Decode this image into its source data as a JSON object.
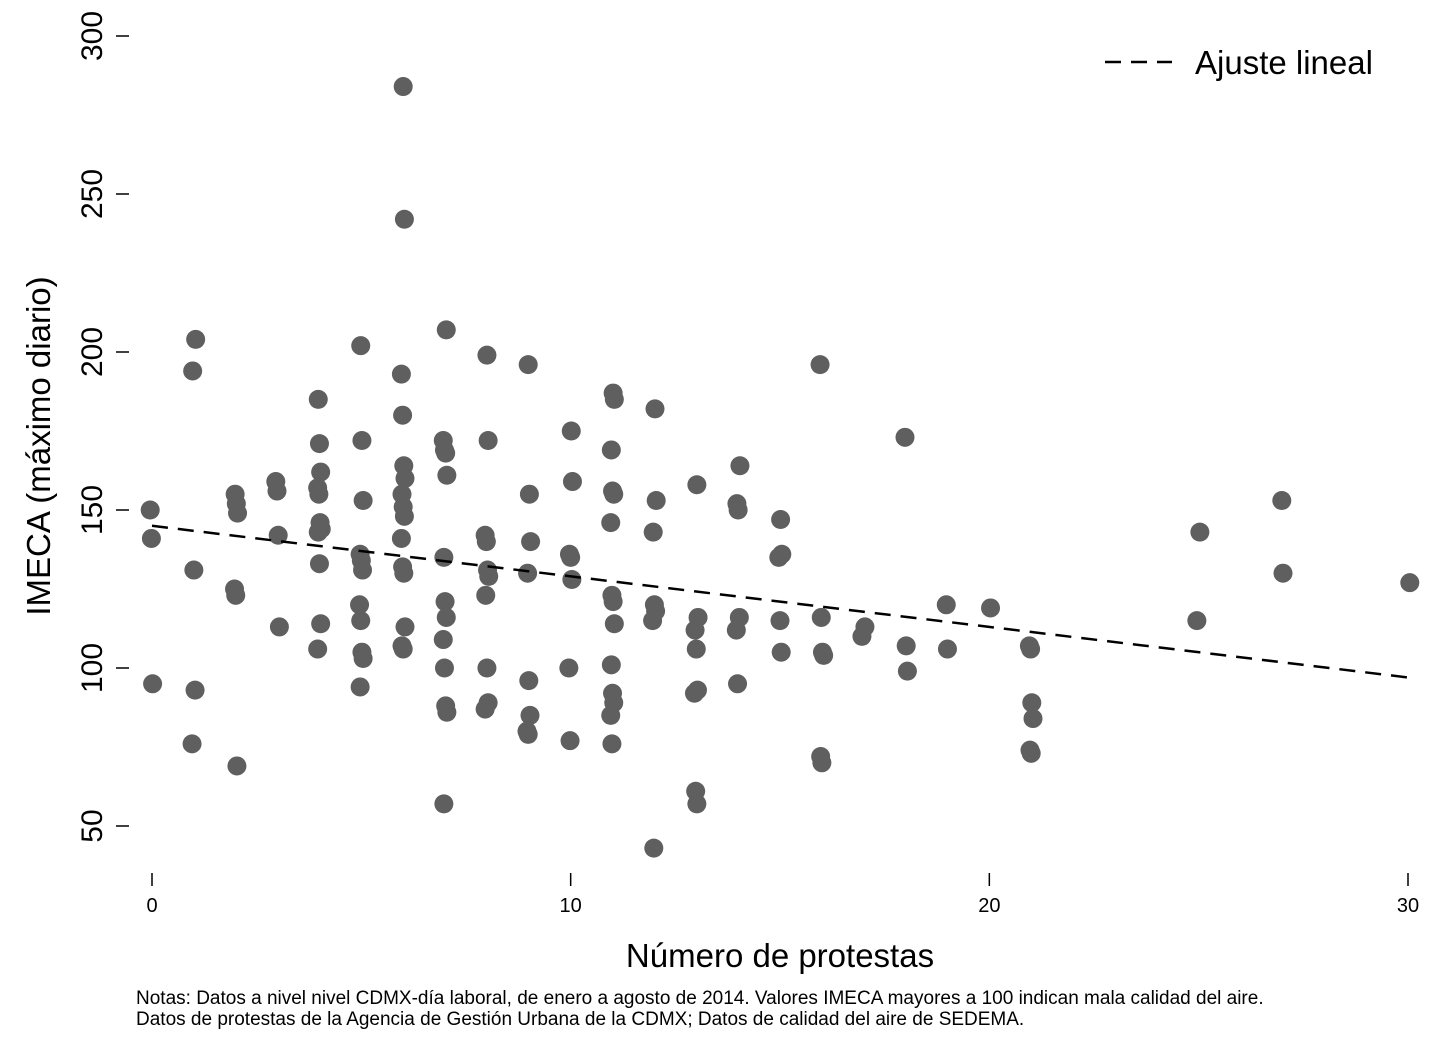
{
  "chart_data": {
    "type": "scatter",
    "xlabel": "Número de protestas",
    "ylabel": "IMECA (máximo diario)",
    "xlim": [
      0,
      30
    ],
    "ylim": [
      38,
      305
    ],
    "x_ticks": [
      0,
      10,
      20,
      30
    ],
    "y_ticks": [
      50,
      100,
      150,
      200,
      250,
      300
    ],
    "legend": {
      "position": "top-right",
      "entries": [
        {
          "label": "Ajuste lineal",
          "style": "dashed"
        }
      ]
    },
    "fit_line": {
      "x": [
        0,
        30
      ],
      "y": [
        145,
        97
      ]
    },
    "colors": {
      "points": "#5f5f5f",
      "fit": "#000000"
    },
    "points": [
      [
        0,
        150
      ],
      [
        0,
        141
      ],
      [
        0,
        95
      ],
      [
        1,
        204
      ],
      [
        1,
        194
      ],
      [
        1,
        131
      ],
      [
        1,
        93
      ],
      [
        1,
        76
      ],
      [
        2,
        155
      ],
      [
        2,
        152
      ],
      [
        2,
        149
      ],
      [
        2,
        125
      ],
      [
        2,
        123
      ],
      [
        2,
        69
      ],
      [
        3,
        159
      ],
      [
        3,
        156
      ],
      [
        3,
        142
      ],
      [
        3,
        113
      ],
      [
        4,
        185
      ],
      [
        4,
        171
      ],
      [
        4,
        162
      ],
      [
        4,
        157
      ],
      [
        4,
        155
      ],
      [
        4,
        146
      ],
      [
        4,
        144
      ],
      [
        4,
        143
      ],
      [
        4,
        133
      ],
      [
        4,
        114
      ],
      [
        4,
        106
      ],
      [
        5,
        202
      ],
      [
        5,
        172
      ],
      [
        5,
        153
      ],
      [
        5,
        136
      ],
      [
        5,
        134
      ],
      [
        5,
        131
      ],
      [
        5,
        120
      ],
      [
        5,
        115
      ],
      [
        5,
        105
      ],
      [
        5,
        103
      ],
      [
        5,
        94
      ],
      [
        6,
        284
      ],
      [
        6,
        242
      ],
      [
        6,
        193
      ],
      [
        6,
        180
      ],
      [
        6,
        164
      ],
      [
        6,
        160
      ],
      [
        6,
        155
      ],
      [
        6,
        151
      ],
      [
        6,
        148
      ],
      [
        6,
        141
      ],
      [
        6,
        132
      ],
      [
        6,
        130
      ],
      [
        6,
        113
      ],
      [
        6,
        107
      ],
      [
        6,
        106
      ],
      [
        7,
        207
      ],
      [
        7,
        172
      ],
      [
        7,
        169
      ],
      [
        7,
        168
      ],
      [
        7,
        161
      ],
      [
        7,
        135
      ],
      [
        7,
        121
      ],
      [
        7,
        116
      ],
      [
        7,
        109
      ],
      [
        7,
        100
      ],
      [
        7,
        88
      ],
      [
        7,
        86
      ],
      [
        7,
        57
      ],
      [
        8,
        199
      ],
      [
        8,
        172
      ],
      [
        8,
        142
      ],
      [
        8,
        140
      ],
      [
        8,
        131
      ],
      [
        8,
        129
      ],
      [
        8,
        123
      ],
      [
        8,
        100
      ],
      [
        8,
        89
      ],
      [
        8,
        87
      ],
      [
        9,
        196
      ],
      [
        9,
        155
      ],
      [
        9,
        140
      ],
      [
        9,
        130
      ],
      [
        9,
        96
      ],
      [
        9,
        85
      ],
      [
        9,
        80
      ],
      [
        9,
        79
      ],
      [
        10,
        175
      ],
      [
        10,
        159
      ],
      [
        10,
        136
      ],
      [
        10,
        135
      ],
      [
        10,
        128
      ],
      [
        10,
        100
      ],
      [
        10,
        77
      ],
      [
        11,
        187
      ],
      [
        11,
        185
      ],
      [
        11,
        169
      ],
      [
        11,
        156
      ],
      [
        11,
        155
      ],
      [
        11,
        146
      ],
      [
        11,
        123
      ],
      [
        11,
        121
      ],
      [
        11,
        114
      ],
      [
        11,
        101
      ],
      [
        11,
        92
      ],
      [
        11,
        89
      ],
      [
        11,
        85
      ],
      [
        11,
        76
      ],
      [
        12,
        182
      ],
      [
        12,
        153
      ],
      [
        12,
        143
      ],
      [
        12,
        120
      ],
      [
        12,
        118
      ],
      [
        12,
        115
      ],
      [
        12,
        43
      ],
      [
        13,
        158
      ],
      [
        13,
        116
      ],
      [
        13,
        112
      ],
      [
        13,
        106
      ],
      [
        13,
        93
      ],
      [
        13,
        92
      ],
      [
        13,
        61
      ],
      [
        13,
        57
      ],
      [
        14,
        164
      ],
      [
        14,
        152
      ],
      [
        14,
        150
      ],
      [
        14,
        116
      ],
      [
        14,
        112
      ],
      [
        14,
        95
      ],
      [
        15,
        147
      ],
      [
        15,
        136
      ],
      [
        15,
        135
      ],
      [
        15,
        115
      ],
      [
        15,
        105
      ],
      [
        16,
        196
      ],
      [
        16,
        116
      ],
      [
        16,
        105
      ],
      [
        16,
        104
      ],
      [
        16,
        72
      ],
      [
        16,
        70
      ],
      [
        17,
        113
      ],
      [
        17,
        110
      ],
      [
        18,
        173
      ],
      [
        18,
        107
      ],
      [
        18,
        99
      ],
      [
        19,
        120
      ],
      [
        19,
        106
      ],
      [
        20,
        119
      ],
      [
        21,
        107
      ],
      [
        21,
        106
      ],
      [
        21,
        89
      ],
      [
        21,
        84
      ],
      [
        21,
        74
      ],
      [
        21,
        73
      ],
      [
        25,
        143
      ],
      [
        25,
        115
      ],
      [
        27,
        153
      ],
      [
        27,
        130
      ],
      [
        30,
        127
      ]
    ]
  },
  "notes": {
    "line1": "Notas: Datos a nivel nivel CDMX-día laboral, de enero a agosto de 2014. Valores IMECA mayores a 100 indican mala calidad del aire.",
    "line2": "Datos de protestas de la Agencia de Gestión Urbana de la CDMX; Datos de calidad del aire de SEDEMA."
  }
}
